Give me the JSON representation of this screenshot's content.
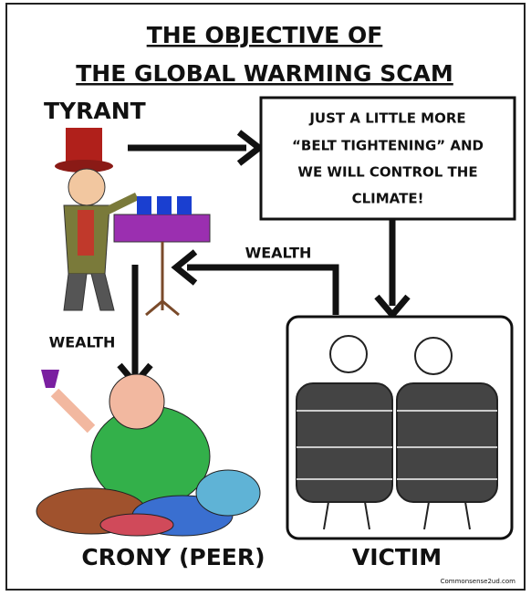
{
  "title": {
    "lines": [
      "THE OBJECTIVE OF",
      "THE GLOBAL WARMING SCAM"
    ]
  },
  "tyrant": {
    "label": "TYRANT"
  },
  "speech_box": {
    "lines": [
      "JUST A LITTLE MORE",
      "“BELT TIGHTENING” AND",
      "WE WILL CONTROL THE",
      "CLIMATE!"
    ]
  },
  "flows": [
    {
      "label": "WEALTH"
    },
    {
      "label": "WEALTH"
    }
  ],
  "crony": {
    "label": "CRONY (PEER)"
  },
  "victim": {
    "label": "VICTIM"
  },
  "watermark": "Commonsense2ud.com"
}
